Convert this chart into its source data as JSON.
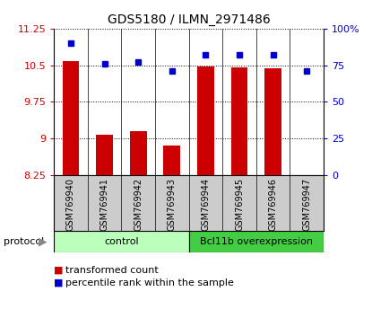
{
  "title": "GDS5180 / ILMN_2971486",
  "samples": [
    "GSM769940",
    "GSM769941",
    "GSM769942",
    "GSM769943",
    "GSM769944",
    "GSM769945",
    "GSM769946",
    "GSM769947"
  ],
  "transformed_counts": [
    10.58,
    9.07,
    9.15,
    8.85,
    10.47,
    10.46,
    10.44,
    8.25
  ],
  "percentile_ranks": [
    90,
    76,
    77,
    71,
    82,
    82,
    82,
    71
  ],
  "ylim_left": [
    8.25,
    11.25
  ],
  "ylim_right": [
    0,
    100
  ],
  "yticks_left": [
    8.25,
    9.0,
    9.75,
    10.5,
    11.25
  ],
  "ytick_labels_left": [
    "8.25",
    "9",
    "9.75",
    "10.5",
    "11.25"
  ],
  "yticks_right": [
    0,
    25,
    50,
    75,
    100
  ],
  "ytick_labels_right": [
    "0",
    "25",
    "50",
    "75",
    "100%"
  ],
  "bar_color": "#cc0000",
  "dot_color": "#0000cc",
  "control_color": "#bbffbb",
  "overexp_color": "#44cc44",
  "sample_bg_color": "#cccccc",
  "control_label": "control",
  "overexp_label": "Bcl11b overexpression",
  "protocol_label": "protocol",
  "legend1": "transformed count",
  "legend2": "percentile rank within the sample",
  "n_control": 4,
  "n_overexp": 4
}
